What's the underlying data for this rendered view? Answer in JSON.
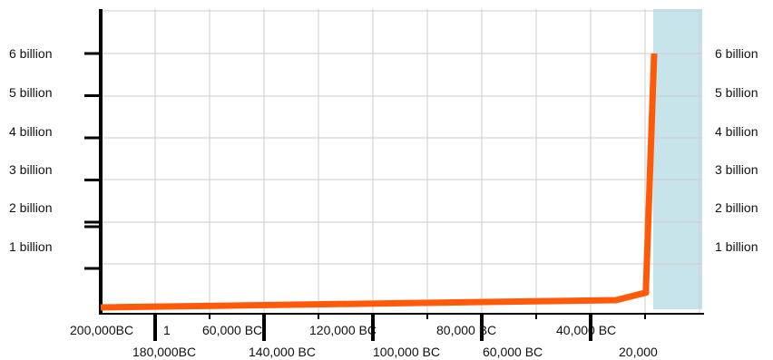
{
  "chart_data": {
    "type": "line",
    "title": "",
    "xlabel": "",
    "ylabel": "",
    "ylim": [
      0,
      6.5
    ],
    "y_unit": "billion",
    "y_tick_labels": [
      "1 billion",
      "2 billion",
      "3 billion",
      "4 billion",
      "5 billion",
      "6 billion"
    ],
    "x_tick_labels": [
      "200,000BC",
      "180,000BC",
      "1",
      "60,000 BC",
      "140,000 BC",
      "120,000 BC",
      "100,000 BC",
      "80,000 BC",
      "60,000 BC",
      "40,000 BC",
      "20,000"
    ],
    "grid": true,
    "highlight_region": "rightmost column",
    "series": [
      {
        "color": "#ff5a0a",
        "x": [
          "200,000BC",
          "40,000 BC",
          "20,000",
          "20,000",
          "present"
        ],
        "values": [
          0.0,
          0.15,
          0.33,
          0.45,
          6.0
        ]
      }
    ]
  },
  "colors": {
    "line": "#ff5a0a",
    "highlight": "#c6e4e9",
    "grid": "#cccccc",
    "axis": "#000000"
  }
}
